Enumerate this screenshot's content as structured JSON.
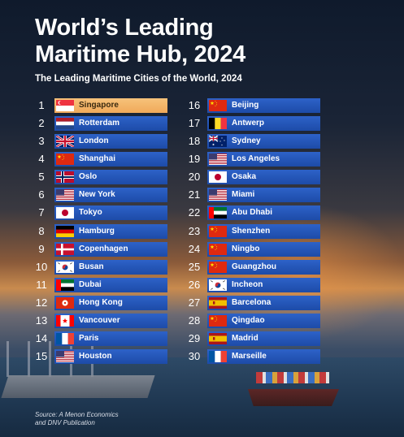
{
  "header": {
    "title_line1": "World’s Leading",
    "title_line2": "Maritime Hub, 2024",
    "subtitle": "The Leading Maritime Cities of the World, 2024"
  },
  "source": {
    "line1": "Source: A Menon Economics",
    "line2": "and DNV Publication"
  },
  "chart_data": {
    "type": "table",
    "title": "World’s Leading Maritime Hub, 2024",
    "subtitle": "The Leading Maritime Cities of the World, 2024",
    "highlight_rank": 1,
    "columns": [
      "rank",
      "city"
    ],
    "rows": [
      {
        "rank": 1,
        "city": "Singapore",
        "flag": "SG"
      },
      {
        "rank": 2,
        "city": "Rotterdam",
        "flag": "NL"
      },
      {
        "rank": 3,
        "city": "London",
        "flag": "GB"
      },
      {
        "rank": 4,
        "city": "Shanghai",
        "flag": "CN"
      },
      {
        "rank": 5,
        "city": "Oslo",
        "flag": "NO"
      },
      {
        "rank": 6,
        "city": "New York",
        "flag": "US"
      },
      {
        "rank": 7,
        "city": "Tokyo",
        "flag": "JP"
      },
      {
        "rank": 8,
        "city": "Hamburg",
        "flag": "DE"
      },
      {
        "rank": 9,
        "city": "Copenhagen",
        "flag": "DK"
      },
      {
        "rank": 10,
        "city": "Busan",
        "flag": "KR"
      },
      {
        "rank": 11,
        "city": "Dubai",
        "flag": "AE"
      },
      {
        "rank": 12,
        "city": "Hong Kong",
        "flag": "HK"
      },
      {
        "rank": 13,
        "city": "Vancouver",
        "flag": "CA"
      },
      {
        "rank": 14,
        "city": "Paris",
        "flag": "FR"
      },
      {
        "rank": 15,
        "city": "Houston",
        "flag": "US"
      },
      {
        "rank": 16,
        "city": "Beijing",
        "flag": "CN"
      },
      {
        "rank": 17,
        "city": "Antwerp",
        "flag": "BE"
      },
      {
        "rank": 18,
        "city": "Sydney",
        "flag": "AU"
      },
      {
        "rank": 19,
        "city": "Los Angeles",
        "flag": "US"
      },
      {
        "rank": 20,
        "city": "Osaka",
        "flag": "JP"
      },
      {
        "rank": 21,
        "city": "Miami",
        "flag": "US"
      },
      {
        "rank": 22,
        "city": "Abu Dhabi",
        "flag": "AE"
      },
      {
        "rank": 23,
        "city": "Shenzhen",
        "flag": "CN"
      },
      {
        "rank": 24,
        "city": "Ningbo",
        "flag": "CN"
      },
      {
        "rank": 25,
        "city": "Guangzhou",
        "flag": "CN"
      },
      {
        "rank": 26,
        "city": "Incheon",
        "flag": "KR"
      },
      {
        "rank": 27,
        "city": "Barcelona",
        "flag": "ES"
      },
      {
        "rank": 28,
        "city": "Qingdao",
        "flag": "CN"
      },
      {
        "rank": 29,
        "city": "Madrid",
        "flag": "ES"
      },
      {
        "rank": 30,
        "city": "Marseille",
        "flag": "FR"
      }
    ]
  },
  "colors": {
    "bar_blue": "#2457bb",
    "bar_highlight": "#f3b468",
    "text": "#ffffff"
  }
}
